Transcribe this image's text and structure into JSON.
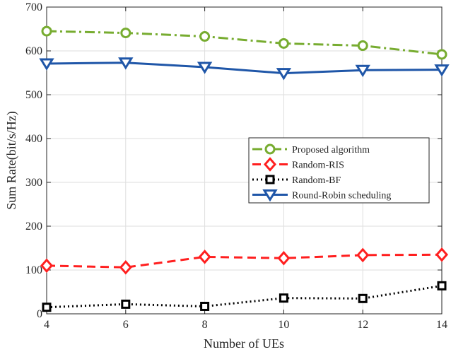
{
  "chart_data": {
    "type": "line",
    "title": "",
    "xlabel": "Number of UEs",
    "ylabel": "Sum Rate(bit/s/Hz)",
    "x": [
      4,
      6,
      8,
      10,
      12,
      14
    ],
    "xlim": [
      4,
      14
    ],
    "ylim": [
      0,
      700
    ],
    "xticks": [
      4,
      6,
      8,
      10,
      12,
      14
    ],
    "yticks": [
      0,
      100,
      200,
      300,
      400,
      500,
      600,
      700
    ],
    "grid": true,
    "legend_position": "right",
    "series": [
      {
        "name": "Proposed algorithm",
        "values": [
          645,
          641,
          633,
          617,
          612,
          592
        ],
        "color": "#77AC30",
        "marker": "circle",
        "line_style": "dash-dot"
      },
      {
        "name": "Random-RIS",
        "values": [
          110,
          106,
          130,
          127,
          134,
          135
        ],
        "color": "#FF1F1F",
        "marker": "diamond",
        "line_style": "dashed"
      },
      {
        "name": "Random-BF",
        "values": [
          15,
          22,
          17,
          36,
          35,
          64
        ],
        "color": "#000000",
        "marker": "square",
        "line_style": "dotted"
      },
      {
        "name": "Round-Robin scheduling",
        "values": [
          571,
          573,
          563,
          549,
          556,
          557
        ],
        "color": "#1F56A8",
        "marker": "triangle-down",
        "line_style": "solid"
      }
    ]
  }
}
